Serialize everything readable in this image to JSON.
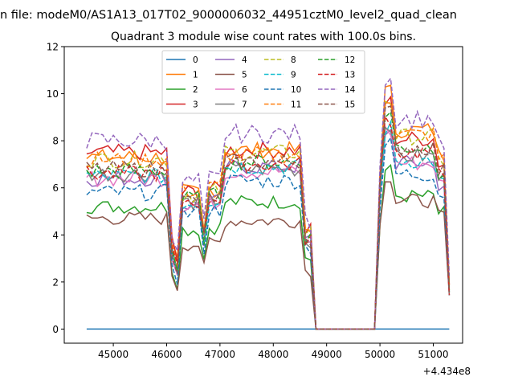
{
  "figure": {
    "suptitle": "n file: modeM0/AS1A13_017T02_9000006032_44951cztM0_level2_quad_clean",
    "title": "Quadrant 3 module wise count rates with 100.0s bins.",
    "offset_label": "+4.434e8"
  },
  "chart_data": {
    "type": "line",
    "title": "Quadrant 3 module wise count rates with 100.0s bins.",
    "xlabel": "",
    "ylabel": "",
    "x_offset": 443400000,
    "xlim": [
      44080,
      51550
    ],
    "ylim": [
      -0.6,
      12
    ],
    "xticks": [
      45000,
      46000,
      47000,
      48000,
      49000,
      50000,
      51000
    ],
    "xtick_labels": [
      "45000",
      "46000",
      "47000",
      "48000",
      "49000",
      "50000",
      "51000"
    ],
    "yticks": [
      0,
      2,
      4,
      6,
      8,
      10,
      12
    ],
    "ytick_labels": [
      "0",
      "2",
      "4",
      "6",
      "8",
      "10",
      "12"
    ],
    "legend_position": "upper center",
    "legend_columns": 4,
    "series": [
      {
        "name": "0",
        "color": "#1f77b4",
        "dash": "solid",
        "bases": [
          0,
          0,
          0,
          0
        ],
        "jitter": 0
      },
      {
        "name": "1",
        "color": "#ff7f0e",
        "dash": "solid",
        "bases": [
          7.3,
          6.6,
          7.6,
          9.0
        ],
        "jitter": 0.35
      },
      {
        "name": "2",
        "color": "#2ca02c",
        "dash": "solid",
        "bases": [
          5.2,
          4.8,
          5.4,
          6.0
        ],
        "jitter": 0.3
      },
      {
        "name": "3",
        "color": "#d62728",
        "dash": "solid",
        "bases": [
          7.5,
          6.6,
          7.6,
          8.6
        ],
        "jitter": 0.35
      },
      {
        "name": "4",
        "color": "#9467bd",
        "dash": "solid",
        "bases": [
          6.4,
          6.0,
          6.9,
          7.5
        ],
        "jitter": 0.35
      },
      {
        "name": "5",
        "color": "#8c564b",
        "dash": "solid",
        "bases": [
          4.7,
          4.1,
          4.6,
          5.8
        ],
        "jitter": 0.3
      },
      {
        "name": "6",
        "color": "#e377c2",
        "dash": "solid",
        "bases": [
          6.4,
          6.0,
          6.7,
          7.5
        ],
        "jitter": 0.35
      },
      {
        "name": "7",
        "color": "#7f7f7f",
        "dash": "solid",
        "bases": [
          6.6,
          6.1,
          6.8,
          7.8
        ],
        "jitter": 0.35
      },
      {
        "name": "8",
        "color": "#bcbd22",
        "dash": "dashed",
        "bases": [
          7.2,
          6.5,
          7.5,
          8.7
        ],
        "jitter": 0.35
      },
      {
        "name": "9",
        "color": "#17becf",
        "dash": "dashed",
        "bases": [
          6.5,
          6.1,
          6.9,
          7.6
        ],
        "jitter": 0.35
      },
      {
        "name": "10",
        "color": "#1f77b4",
        "dash": "dashed",
        "bases": [
          5.8,
          5.6,
          6.3,
          7.0
        ],
        "jitter": 0.35
      },
      {
        "name": "11",
        "color": "#ff7f0e",
        "dash": "dashed",
        "bases": [
          7.2,
          6.7,
          7.4,
          8.8
        ],
        "jitter": 0.35
      },
      {
        "name": "12",
        "color": "#2ca02c",
        "dash": "dashed",
        "bases": [
          6.7,
          6.3,
          7.1,
          8.2
        ],
        "jitter": 0.35
      },
      {
        "name": "13",
        "color": "#d62728",
        "dash": "dashed",
        "bases": [
          6.6,
          6.2,
          7.0,
          8.0
        ],
        "jitter": 0.35
      },
      {
        "name": "14",
        "color": "#9467bd",
        "dash": "dashed",
        "bases": [
          8.0,
          7.1,
          8.3,
          9.5
        ],
        "jitter": 0.4
      },
      {
        "name": "15",
        "color": "#8c564b",
        "dash": "dashed",
        "bases": [
          6.8,
          6.2,
          7.1,
          8.2
        ],
        "jitter": 0.35
      }
    ],
    "time_profile": {
      "x_start": 44500,
      "x_end": 51300,
      "step": 100,
      "segments": [
        {
          "from": 44500,
          "to": 46000,
          "base_index": 0,
          "factor": 1.0
        },
        {
          "from": 46100,
          "to": 46100,
          "base_index": 0,
          "factor": 0.5
        },
        {
          "from": 46200,
          "to": 46200,
          "base_index": 0,
          "factor": 0.38
        },
        {
          "from": 46300,
          "to": 46600,
          "base_index": 1,
          "factor": 0.88
        },
        {
          "from": 46700,
          "to": 46700,
          "base_index": 1,
          "factor": 0.62
        },
        {
          "from": 46800,
          "to": 47000,
          "base_index": 1,
          "factor": 0.9
        },
        {
          "from": 47100,
          "to": 48500,
          "base_index": 2,
          "factor": 1.0
        },
        {
          "from": 48600,
          "to": 48700,
          "base_index": 2,
          "factor": 0.55
        },
        {
          "from": 48800,
          "to": 49900,
          "base_index": 2,
          "factor": 0.0
        },
        {
          "from": 50000,
          "to": 50000,
          "base_index": 3,
          "factor": 0.75
        },
        {
          "from": 50100,
          "to": 50200,
          "base_index": 3,
          "factor": 1.12
        },
        {
          "from": 50300,
          "to": 51000,
          "base_index": 3,
          "factor": 0.94
        },
        {
          "from": 51100,
          "to": 51200,
          "base_index": 3,
          "factor": 0.82
        },
        {
          "from": 51300,
          "to": 51300,
          "base_index": 3,
          "factor": 0.22
        }
      ]
    }
  }
}
